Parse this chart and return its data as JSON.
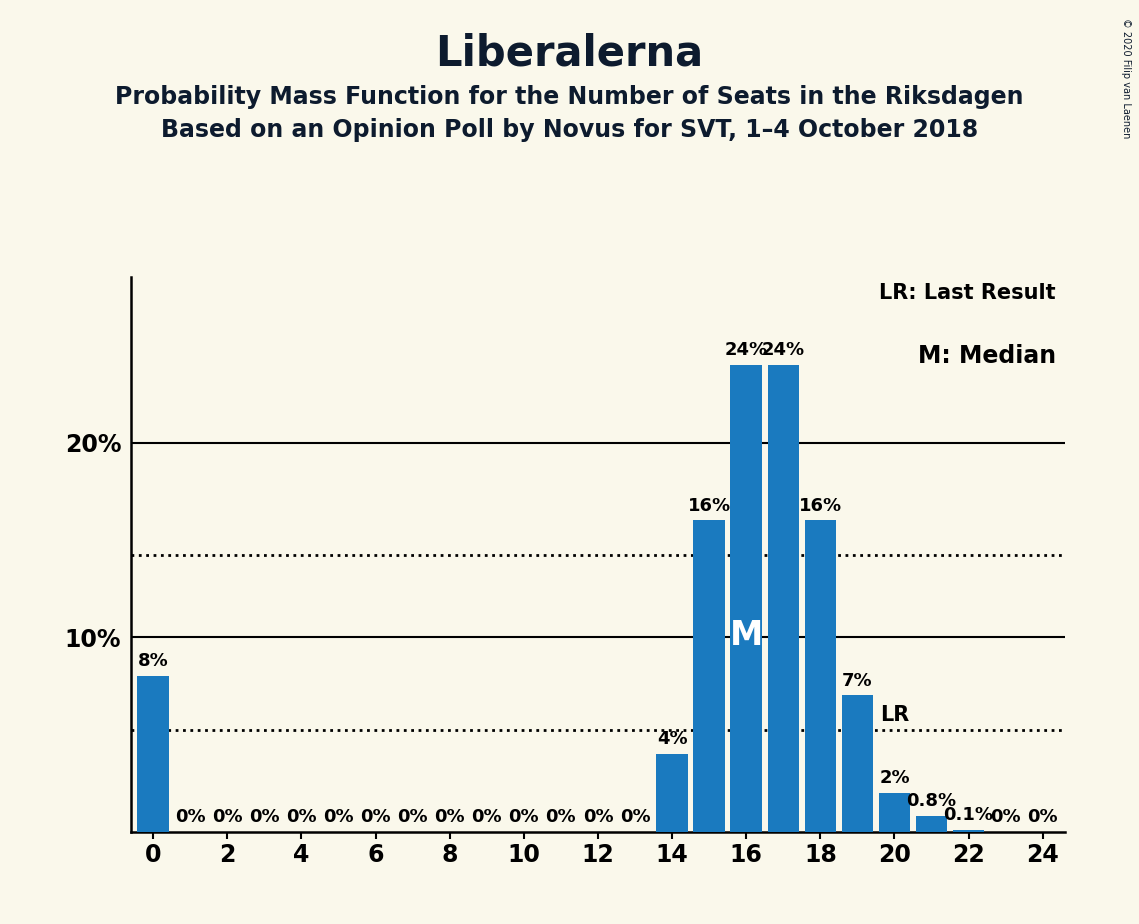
{
  "title": "Liberalerna",
  "subtitle1": "Probability Mass Function for the Number of Seats in the Riksdagen",
  "subtitle2": "Based on an Opinion Poll by Novus for SVT, 1–4 October 2018",
  "copyright": "© 2020 Filip van Laenen",
  "seats": [
    0,
    1,
    2,
    3,
    4,
    5,
    6,
    7,
    8,
    9,
    10,
    11,
    12,
    13,
    14,
    15,
    16,
    17,
    18,
    19,
    20,
    21,
    22,
    23,
    24
  ],
  "probabilities": [
    0.08,
    0.0,
    0.0,
    0.0,
    0.0,
    0.0,
    0.0,
    0.0,
    0.0,
    0.0,
    0.0,
    0.0,
    0.0,
    0.0,
    0.04,
    0.16,
    0.24,
    0.24,
    0.16,
    0.07,
    0.02,
    0.008,
    0.001,
    0.0,
    0.0
  ],
  "bar_color": "#1a7abf",
  "background_color": "#faf8eb",
  "median_seat": 16,
  "last_result_seat": 19,
  "median_label": "M",
  "lr_label": "LR",
  "legend_lr": "LR: Last Result",
  "legend_m": "M: Median",
  "lr_line_y": 0.052,
  "ref_line_y": 0.142,
  "ylim": [
    0,
    0.285
  ],
  "xlim": [
    -0.6,
    24.6
  ],
  "title_fontsize": 30,
  "subtitle_fontsize": 17,
  "axis_fontsize": 17,
  "bar_label_fontsize": 13,
  "median_fontsize": 24,
  "lr_fontsize": 15,
  "legend_fontsize_lr": 15,
  "legend_fontsize_m": 17
}
